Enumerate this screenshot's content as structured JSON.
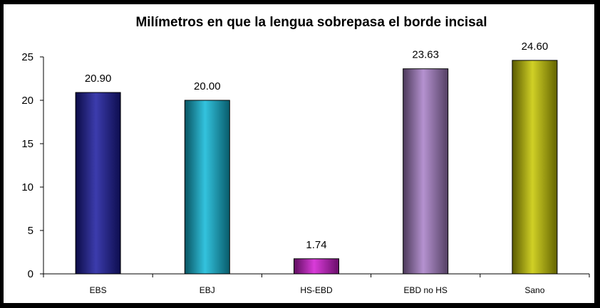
{
  "chart_data": {
    "type": "bar",
    "title": "Milímetros en que la lengua sobrepasa el borde incisal",
    "categories": [
      "EBS",
      "EBJ",
      "HS-EBD",
      "EBD no HS",
      "Sano"
    ],
    "values": [
      20.9,
      20.0,
      1.74,
      23.63,
      24.6
    ],
    "data_labels": [
      "20.90",
      "20.00",
      "1.74",
      "23.63",
      "24.60"
    ],
    "yticks": [
      "0",
      "5",
      "10",
      "15",
      "20",
      "25"
    ],
    "ylim": [
      0,
      25
    ],
    "grid": false,
    "legend": "none",
    "colors": [
      "#1a1a9e",
      "#0fb8d8",
      "#d21ad2",
      "#a87fc8",
      "#c8c800"
    ]
  }
}
